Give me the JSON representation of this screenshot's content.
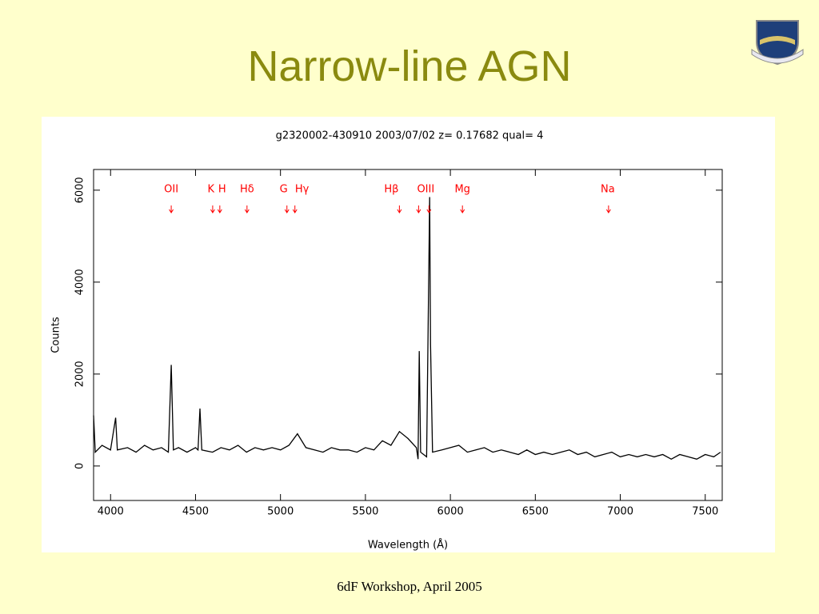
{
  "slide": {
    "title": "Narrow-line AGN",
    "footer": "6dF Workshop, April 2005"
  },
  "chart_data": {
    "type": "line",
    "title": "g2320002-430910 2003/07/02 z= 0.17682 qual= 4",
    "xlabel": "Wavelength (Å)",
    "ylabel": "Counts",
    "color": "#000000",
    "x": [
      3900,
      3910,
      3950,
      4000,
      4030,
      4040,
      4100,
      4150,
      4200,
      4250,
      4300,
      4340,
      4357,
      4370,
      4400,
      4450,
      4500,
      4515,
      4526,
      4537,
      4600,
      4650,
      4700,
      4750,
      4800,
      4850,
      4900,
      4950,
      5000,
      5050,
      5100,
      5150,
      5200,
      5250,
      5300,
      5350,
      5400,
      5450,
      5500,
      5550,
      5600,
      5650,
      5700,
      5750,
      5800,
      5810,
      5817,
      5825,
      5860,
      5878,
      5883,
      5895,
      5950,
      6000,
      6050,
      6100,
      6150,
      6200,
      6250,
      6300,
      6350,
      6400,
      6450,
      6500,
      6550,
      6600,
      6650,
      6700,
      6750,
      6800,
      6850,
      6900,
      6950,
      7000,
      7050,
      7100,
      7150,
      7200,
      7250,
      7300,
      7350,
      7400,
      7450,
      7500,
      7550,
      7590
    ],
    "values": [
      1100,
      300,
      450,
      350,
      1050,
      350,
      400,
      300,
      450,
      350,
      400,
      300,
      2200,
      350,
      400,
      300,
      400,
      350,
      1250,
      350,
      300,
      400,
      350,
      450,
      300,
      400,
      350,
      400,
      350,
      450,
      700,
      400,
      350,
      300,
      400,
      350,
      350,
      300,
      400,
      350,
      550,
      450,
      750,
      600,
      400,
      150,
      2500,
      300,
      200,
      5850,
      2650,
      300,
      350,
      400,
      450,
      300,
      350,
      400,
      300,
      350,
      300,
      250,
      350,
      250,
      300,
      250,
      300,
      350,
      250,
      300,
      200,
      250,
      300,
      200,
      250,
      200,
      250,
      200,
      250,
      150,
      250,
      200,
      150,
      250,
      200,
      300
    ],
    "xlim": [
      3900,
      7600
    ],
    "ylim": [
      -750,
      6450
    ],
    "xticks": [
      4000,
      4500,
      5000,
      5500,
      6000,
      6500,
      7000,
      7500
    ],
    "yticks": [
      0,
      2000,
      4000,
      6000
    ],
    "annotations": [
      {
        "text": "OII",
        "x": 4357
      },
      {
        "text": "K",
        "x": 4591
      },
      {
        "text": "H",
        "x": 4657
      },
      {
        "text": "Hδ",
        "x": 4803
      },
      {
        "text": "G",
        "x": 5019
      },
      {
        "text": "Hγ",
        "x": 5127
      },
      {
        "text": "Hβ",
        "x": 5653
      },
      {
        "text": "OIII",
        "x": 5855
      },
      {
        "text": "Mg",
        "x": 6071
      },
      {
        "text": "Na",
        "x": 6926
      }
    ],
    "arrows": [
      4357,
      4601,
      4643,
      4803,
      5038,
      5085,
      5700,
      5813,
      5874,
      6071,
      6931
    ],
    "annotation_color": "#ff0000"
  }
}
